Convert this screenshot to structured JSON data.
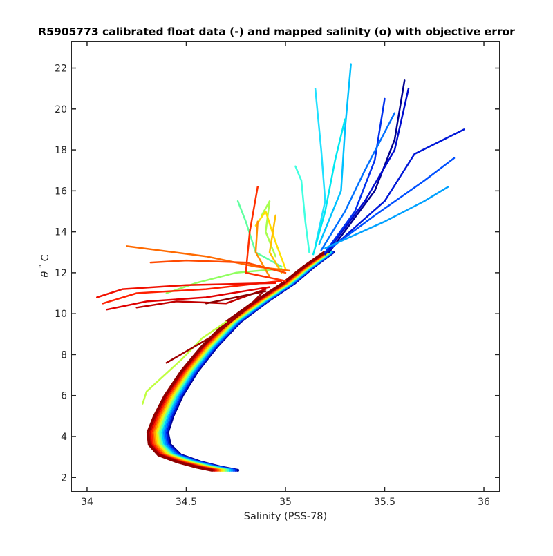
{
  "chart_data": {
    "type": "line",
    "title": "R5905773 calibrated float data (-) and mapped salinity (o) with objective error",
    "xlabel": "Salinity (PSS-78)",
    "ylabel_symbol": "θ",
    "ylabel_degree": "°",
    "ylabel_unit": "C",
    "xlim": [
      33.92,
      36.08
    ],
    "ylim": [
      1.3,
      23.3
    ],
    "xticks": [
      "34",
      "34.5",
      "35",
      "35.5",
      "36"
    ],
    "yticks": [
      "2",
      "4",
      "6",
      "8",
      "10",
      "12",
      "14",
      "16",
      "18",
      "20",
      "22"
    ],
    "grid": false,
    "colormap": "jet (dark blue = early profiles, dark red = late profiles)",
    "deep_curve": {
      "points": [
        [
          34.7,
          2.35
        ],
        [
          34.62,
          2.5
        ],
        [
          34.52,
          2.75
        ],
        [
          34.42,
          3.1
        ],
        [
          34.37,
          3.6
        ],
        [
          34.36,
          4.2
        ],
        [
          34.39,
          5.0
        ],
        [
          34.44,
          6.0
        ],
        [
          34.52,
          7.2
        ],
        [
          34.62,
          8.4
        ],
        [
          34.74,
          9.6
        ],
        [
          34.88,
          10.6
        ],
        [
          35.02,
          11.5
        ],
        [
          35.12,
          12.3
        ],
        [
          35.22,
          13.0
        ]
      ],
      "band_offsets": [
        -0.07,
        0.06
      ]
    },
    "series": [
      {
        "color": "#00008f",
        "values": [
          [
            35.22,
            13.0
          ],
          [
            35.45,
            16.0
          ],
          [
            35.55,
            18.5
          ],
          [
            35.6,
            21.4
          ]
        ]
      },
      {
        "color": "#000ccf",
        "values": [
          [
            35.2,
            12.9
          ],
          [
            35.4,
            15.5
          ],
          [
            35.55,
            18.0
          ],
          [
            35.62,
            21.0
          ]
        ]
      },
      {
        "color": "#0018d8",
        "values": [
          [
            35.22,
            13.1
          ],
          [
            35.5,
            15.5
          ],
          [
            35.65,
            17.8
          ],
          [
            35.9,
            19.0
          ]
        ]
      },
      {
        "color": "#0030ee",
        "values": [
          [
            35.2,
            13.0
          ],
          [
            35.35,
            15.0
          ],
          [
            35.45,
            17.5
          ],
          [
            35.5,
            20.5
          ]
        ]
      },
      {
        "color": "#0050ff",
        "values": [
          [
            35.24,
            13.3
          ],
          [
            35.45,
            14.8
          ],
          [
            35.7,
            16.5
          ],
          [
            35.85,
            17.6
          ]
        ]
      },
      {
        "color": "#0070ff",
        "values": [
          [
            35.18,
            13.1
          ],
          [
            35.3,
            15.0
          ],
          [
            35.4,
            17.0
          ],
          [
            35.55,
            19.8
          ]
        ]
      },
      {
        "color": "#00a0ff",
        "values": [
          [
            35.2,
            13.2
          ],
          [
            35.5,
            14.5
          ],
          [
            35.7,
            15.5
          ],
          [
            35.82,
            16.2
          ]
        ]
      },
      {
        "color": "#00c0ff",
        "values": [
          [
            35.17,
            13.4
          ],
          [
            35.28,
            16.0
          ],
          [
            35.3,
            19.0
          ],
          [
            35.33,
            22.2
          ]
        ]
      },
      {
        "color": "#20e0ff",
        "values": [
          [
            35.15,
            13.3
          ],
          [
            35.2,
            15.5
          ],
          [
            35.18,
            18.0
          ],
          [
            35.15,
            21.0
          ]
        ]
      },
      {
        "color": "#40ffe0",
        "values": [
          [
            35.12,
            13.0
          ],
          [
            35.1,
            14.5
          ],
          [
            35.08,
            16.5
          ],
          [
            35.05,
            17.2
          ]
        ]
      },
      {
        "color": "#00e8f0",
        "values": [
          [
            35.14,
            12.9
          ],
          [
            35.2,
            15.0
          ],
          [
            35.25,
            17.5
          ],
          [
            35.3,
            19.5
          ]
        ]
      },
      {
        "color": "#60ffa0",
        "values": [
          [
            34.98,
            12.3
          ],
          [
            34.85,
            13.0
          ],
          [
            34.8,
            14.5
          ],
          [
            34.76,
            15.5
          ]
        ]
      },
      {
        "color": "#90ff60",
        "values": [
          [
            34.98,
            12.2
          ],
          [
            34.75,
            12.0
          ],
          [
            34.55,
            11.5
          ],
          [
            34.4,
            11.0
          ]
        ]
      },
      {
        "color": "#a8ff50",
        "values": [
          [
            34.95,
            12.8
          ],
          [
            34.9,
            14.0
          ],
          [
            34.92,
            15.5
          ],
          [
            34.88,
            14.8
          ]
        ]
      },
      {
        "color": "#c0ff40",
        "values": [
          [
            34.7,
            9.6
          ],
          [
            34.58,
            8.8
          ],
          [
            34.48,
            7.8
          ],
          [
            34.3,
            6.2
          ],
          [
            34.28,
            5.6
          ]
        ]
      },
      {
        "color": "#ffe000",
        "values": [
          [
            35.0,
            12.2
          ],
          [
            34.95,
            13.5
          ],
          [
            34.9,
            15.0
          ],
          [
            34.85,
            14.3
          ]
        ]
      },
      {
        "color": "#ffc000",
        "values": [
          [
            34.98,
            12.0
          ],
          [
            34.92,
            13.0
          ],
          [
            34.95,
            14.8
          ]
        ]
      },
      {
        "color": "#ff9000",
        "values": [
          [
            34.92,
            11.8
          ],
          [
            34.85,
            13.0
          ],
          [
            34.86,
            14.5
          ]
        ]
      },
      {
        "color": "#ff6a00",
        "values": [
          [
            35.02,
            12.1
          ],
          [
            34.85,
            12.3
          ],
          [
            34.6,
            12.8
          ],
          [
            34.2,
            13.3
          ]
        ]
      },
      {
        "color": "#ff4a00",
        "values": [
          [
            35.0,
            12.0
          ],
          [
            34.8,
            12.5
          ],
          [
            34.5,
            12.6
          ],
          [
            34.32,
            12.5
          ]
        ]
      },
      {
        "color": "#ff3000",
        "values": [
          [
            35.0,
            11.6
          ],
          [
            34.8,
            12.0
          ],
          [
            34.82,
            14.0
          ],
          [
            34.86,
            16.2
          ]
        ]
      },
      {
        "color": "#ff2000",
        "values": [
          [
            34.98,
            11.6
          ],
          [
            34.6,
            11.2
          ],
          [
            34.25,
            11.0
          ],
          [
            34.08,
            10.5
          ]
        ]
      },
      {
        "color": "#f01000",
        "values": [
          [
            34.95,
            11.5
          ],
          [
            34.5,
            11.4
          ],
          [
            34.18,
            11.2
          ],
          [
            34.05,
            10.8
          ]
        ]
      },
      {
        "color": "#e00000",
        "values": [
          [
            34.92,
            11.3
          ],
          [
            34.6,
            10.8
          ],
          [
            34.3,
            10.6
          ],
          [
            34.1,
            10.2
          ]
        ]
      },
      {
        "color": "#c00000",
        "values": [
          [
            34.9,
            11.2
          ],
          [
            34.7,
            10.5
          ],
          [
            34.45,
            10.6
          ],
          [
            34.25,
            10.3
          ]
        ]
      },
      {
        "color": "#a00000",
        "values": [
          [
            34.88,
            11.0
          ],
          [
            34.8,
            10.2
          ],
          [
            34.65,
            9.0
          ],
          [
            34.4,
            7.6
          ]
        ]
      },
      {
        "color": "#8a0000",
        "values": [
          [
            34.9,
            11.1
          ],
          [
            34.75,
            10.8
          ],
          [
            34.6,
            10.5
          ]
        ]
      }
    ]
  }
}
